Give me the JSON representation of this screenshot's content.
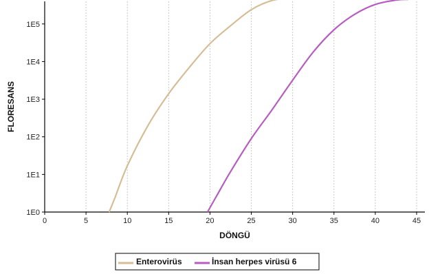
{
  "chart_data": {
    "type": "line",
    "title": "",
    "xlabel": "DÖNGÜ",
    "ylabel": "FLORESANS",
    "xlim": [
      0,
      46
    ],
    "ylim_log10": [
      0,
      5.6
    ],
    "y_scale": "log",
    "x_ticks": [
      0,
      5,
      10,
      15,
      20,
      25,
      30,
      35,
      40,
      45
    ],
    "x_tick_labels": [
      "0",
      "5",
      "10",
      "15",
      "20",
      "25",
      "30",
      "35",
      "40",
      "45"
    ],
    "y_ticks": [
      1,
      10,
      100,
      1000,
      10000,
      100000
    ],
    "y_tick_labels": [
      "1E0",
      "1E1",
      "1E2",
      "1E3",
      "1E4",
      "1E5"
    ],
    "grid": "vertical dashed",
    "legend_position": "bottom",
    "series": [
      {
        "name": "Enterovirüs",
        "color": "#d5bd96",
        "x": [
          7.8,
          8.5,
          10,
          12.5,
          15,
          17.5,
          20,
          22.5,
          25,
          27.5,
          30,
          32.5,
          35,
          37.5,
          40,
          42.5,
          44
        ],
        "y": [
          1,
          2.4,
          17,
          200,
          1400,
          7000,
          30000,
          90000,
          240000,
          420000,
          500000,
          540000,
          560000,
          570000,
          580000,
          585000,
          590000
        ]
      },
      {
        "name": "İnsan herpes virüsü 6",
        "color": "#b75cc1",
        "x": [
          19.7,
          21,
          22.5,
          25,
          27.5,
          30,
          32.5,
          35,
          37.5,
          40,
          42.5,
          44
        ],
        "y": [
          1,
          3.2,
          12,
          90,
          520,
          3200,
          18000,
          70000,
          180000,
          330000,
          430000,
          450000
        ]
      }
    ]
  }
}
